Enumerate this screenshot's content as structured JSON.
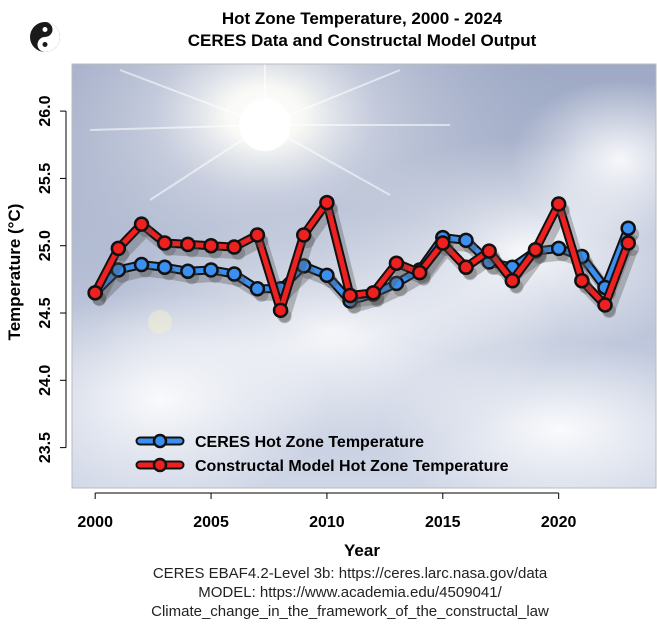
{
  "chart_data": {
    "type": "line",
    "title": "Hot Zone Temperature, 2000 - 2024",
    "subtitle": "CERES Data and Constructal Model Output",
    "xlabel": "Year",
    "ylabel": "Temperature (°C)",
    "xlim": [
      1999,
      2024.2
    ],
    "ylim": [
      23.2,
      26.35
    ],
    "x_ticks": [
      "2000",
      "2005",
      "2010",
      "2015",
      "2020"
    ],
    "y_ticks": [
      "23.5",
      "24.0",
      "24.5",
      "25.0",
      "25.5",
      "26.0"
    ],
    "x": [
      2000,
      2001,
      2002,
      2003,
      2004,
      2005,
      2006,
      2007,
      2008,
      2009,
      2010,
      2011,
      2012,
      2013,
      2014,
      2015,
      2016,
      2017,
      2018,
      2019,
      2020,
      2021,
      2022,
      2023
    ],
    "series": [
      {
        "name": "CERES Hot Zone Temperature",
        "color": "#3a8ff0",
        "values": [
          24.65,
          24.82,
          24.86,
          24.84,
          24.81,
          24.82,
          24.79,
          24.68,
          24.68,
          24.85,
          24.78,
          24.59,
          24.64,
          24.72,
          24.82,
          25.06,
          25.04,
          24.88,
          24.84,
          24.96,
          24.98,
          24.92,
          24.69,
          25.13
        ]
      },
      {
        "name": "Constructal Model Hot Zone Temperature",
        "color": "#ee2020",
        "values": [
          24.65,
          24.98,
          25.16,
          25.02,
          25.01,
          25.0,
          24.99,
          25.08,
          24.52,
          25.08,
          25.32,
          24.63,
          24.65,
          24.87,
          24.8,
          25.02,
          24.84,
          24.96,
          24.74,
          24.97,
          25.31,
          24.74,
          24.56,
          25.02
        ]
      }
    ],
    "legend": "bottom-left",
    "grid": false
  },
  "caption": {
    "line1": "CERES EBAF4.2-Level 3b: https://ceres.larc.nasa.gov/data",
    "line2": "MODEL: https://www.academia.edu/4509041/",
    "line3": "Climate_change_in_the_framework_of_the_constructal_law"
  }
}
